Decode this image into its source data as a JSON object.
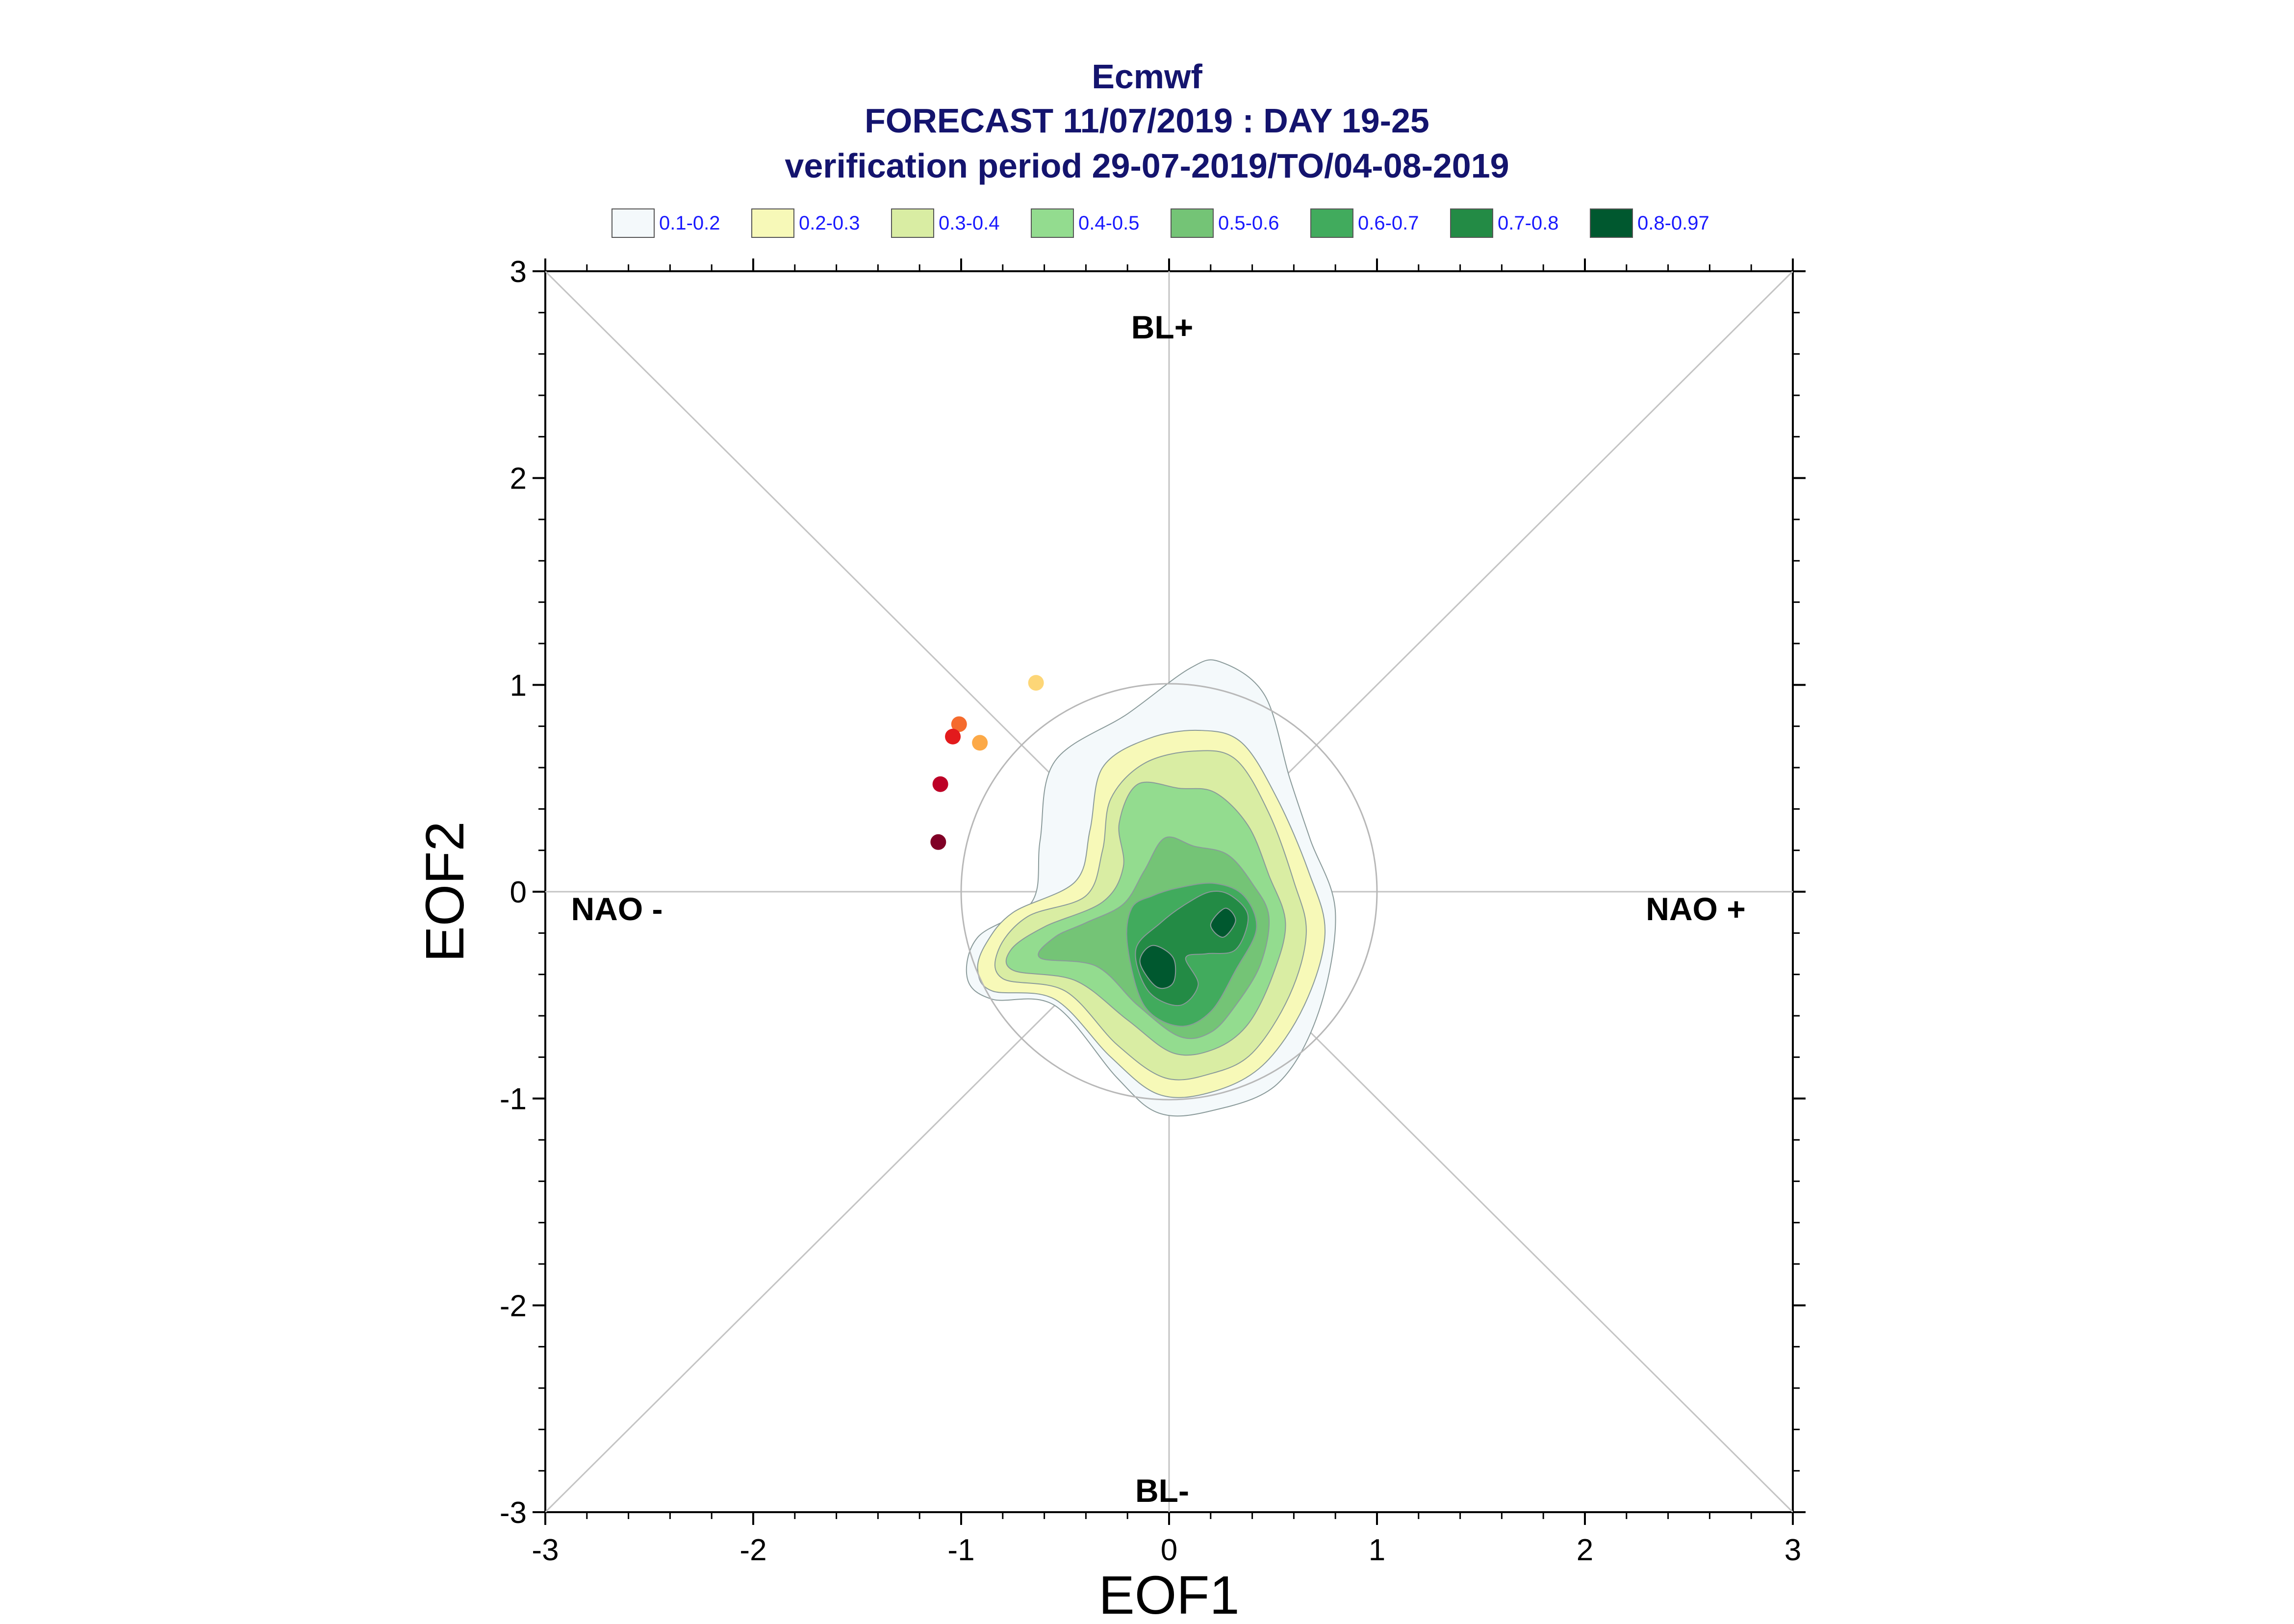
{
  "chart_data": {
    "type": "scatter",
    "title": "Ecmwf",
    "subtitle_lines": [
      "FORECAST 11/07/2019 : DAY 19-25",
      "verification period 29-07-2019/TO/04-08-2019"
    ],
    "xlabel": "EOF1",
    "ylabel": "EOF2",
    "xlim": [
      -3,
      3
    ],
    "ylim": [
      -3,
      3
    ],
    "xticks": [
      "-3",
      "-2",
      "-1",
      "0",
      "1",
      "2",
      "3"
    ],
    "yticks": [
      "-3",
      "-2",
      "-1",
      "0",
      "1",
      "2",
      "3"
    ],
    "regions": {
      "top": "BL+",
      "bottom": "BL-",
      "left": "NAO -",
      "right": "NAO +"
    },
    "legend": {
      "placement": "top",
      "entries": [
        {
          "label": "0.1-0.2",
          "color": "#f4f9fb"
        },
        {
          "label": "0.2-0.3",
          "color": "#f7f9b8"
        },
        {
          "label": "0.3-0.4",
          "color": "#d9eda3"
        },
        {
          "label": "0.4-0.5",
          "color": "#93dc8f"
        },
        {
          "label": "0.5-0.6",
          "color": "#74c476"
        },
        {
          "label": "0.6-0.7",
          "color": "#41ab5d"
        },
        {
          "label": "0.7-0.8",
          "color": "#238b45"
        },
        {
          "label": "0.8-0.97",
          "color": "#00582f"
        }
      ]
    },
    "unit_circle": {
      "radius": 1
    },
    "density_contours": [
      {
        "level": "0.1-0.2",
        "points": [
          [
            -0.85,
            -0.52
          ],
          [
            -0.55,
            -0.55
          ],
          [
            -0.25,
            -0.9
          ],
          [
            -0.05,
            -1.07
          ],
          [
            0.2,
            -1.06
          ],
          [
            0.52,
            -0.93
          ],
          [
            0.72,
            -0.58
          ],
          [
            0.8,
            -0.1
          ],
          [
            0.68,
            0.25
          ],
          [
            0.58,
            0.55
          ],
          [
            0.46,
            0.95
          ],
          [
            0.25,
            1.11
          ],
          [
            0.1,
            1.08
          ],
          [
            -0.2,
            0.86
          ],
          [
            -0.55,
            0.63
          ],
          [
            -0.62,
            0.25
          ],
          [
            -0.66,
            -0.05
          ],
          [
            -0.92,
            -0.22
          ],
          [
            -0.97,
            -0.42
          ]
        ]
      },
      {
        "level": "0.2-0.3",
        "points": [
          [
            -0.85,
            -0.48
          ],
          [
            -0.55,
            -0.52
          ],
          [
            -0.28,
            -0.8
          ],
          [
            -0.05,
            -0.98
          ],
          [
            0.2,
            -0.97
          ],
          [
            0.45,
            -0.84
          ],
          [
            0.65,
            -0.55
          ],
          [
            0.75,
            -0.2
          ],
          [
            0.67,
            0.1
          ],
          [
            0.52,
            0.45
          ],
          [
            0.35,
            0.72
          ],
          [
            0.15,
            0.78
          ],
          [
            -0.1,
            0.74
          ],
          [
            -0.32,
            0.6
          ],
          [
            -0.38,
            0.3
          ],
          [
            -0.45,
            0.05
          ],
          [
            -0.75,
            -0.1
          ],
          [
            -0.88,
            -0.25
          ],
          [
            -0.92,
            -0.38
          ]
        ]
      },
      {
        "level": "0.3-0.4",
        "points": [
          [
            -0.8,
            -0.42
          ],
          [
            -0.5,
            -0.48
          ],
          [
            -0.25,
            -0.74
          ],
          [
            -0.02,
            -0.9
          ],
          [
            0.2,
            -0.88
          ],
          [
            0.4,
            -0.78
          ],
          [
            0.58,
            -0.5
          ],
          [
            0.66,
            -0.2
          ],
          [
            0.6,
            0.05
          ],
          [
            0.48,
            0.38
          ],
          [
            0.32,
            0.64
          ],
          [
            0.12,
            0.68
          ],
          [
            -0.12,
            0.62
          ],
          [
            -0.28,
            0.45
          ],
          [
            -0.32,
            0.2
          ],
          [
            -0.4,
            -0.02
          ],
          [
            -0.68,
            -0.12
          ],
          [
            -0.82,
            -0.28
          ]
        ]
      },
      {
        "level": "0.4-0.5",
        "points": [
          [
            -0.75,
            -0.38
          ],
          [
            -0.45,
            -0.43
          ],
          [
            -0.2,
            -0.62
          ],
          [
            0.02,
            -0.78
          ],
          [
            0.22,
            -0.76
          ],
          [
            0.38,
            -0.64
          ],
          [
            0.5,
            -0.4
          ],
          [
            0.56,
            -0.15
          ],
          [
            0.48,
            0.08
          ],
          [
            0.38,
            0.32
          ],
          [
            0.22,
            0.48
          ],
          [
            0.05,
            0.5
          ],
          [
            -0.15,
            0.52
          ],
          [
            -0.24,
            0.33
          ],
          [
            -0.22,
            0.12
          ],
          [
            -0.32,
            -0.05
          ],
          [
            -0.6,
            -0.17
          ],
          [
            -0.76,
            -0.28
          ]
        ]
      },
      {
        "level": "0.5-0.6",
        "points": [
          [
            -0.62,
            -0.32
          ],
          [
            -0.35,
            -0.36
          ],
          [
            -0.15,
            -0.55
          ],
          [
            0.05,
            -0.7
          ],
          [
            0.2,
            -0.68
          ],
          [
            0.32,
            -0.55
          ],
          [
            0.44,
            -0.35
          ],
          [
            0.48,
            -0.12
          ],
          [
            0.4,
            0.04
          ],
          [
            0.28,
            0.18
          ],
          [
            0.12,
            0.22
          ],
          [
            -0.02,
            0.26
          ],
          [
            -0.12,
            0.1
          ],
          [
            -0.22,
            -0.06
          ],
          [
            -0.4,
            -0.15
          ],
          [
            -0.55,
            -0.22
          ]
        ]
      },
      {
        "level": "0.6-0.7",
        "points": [
          [
            -0.2,
            -0.26
          ],
          [
            -0.12,
            -0.55
          ],
          [
            0.05,
            -0.65
          ],
          [
            0.2,
            -0.58
          ],
          [
            0.32,
            -0.38
          ],
          [
            0.42,
            -0.18
          ],
          [
            0.36,
            -0.02
          ],
          [
            0.22,
            0.04
          ],
          [
            0.05,
            0.02
          ],
          [
            -0.08,
            -0.02
          ],
          [
            -0.18,
            -0.08
          ]
        ]
      },
      {
        "level": "0.7-0.8",
        "points": [
          [
            -0.16,
            -0.28
          ],
          [
            -0.1,
            -0.48
          ],
          [
            0.05,
            -0.55
          ],
          [
            0.14,
            -0.45
          ],
          [
            0.08,
            -0.32
          ],
          [
            0.18,
            -0.3
          ],
          [
            0.32,
            -0.28
          ],
          [
            0.38,
            -0.12
          ],
          [
            0.3,
            -0.02
          ],
          [
            0.2,
            0.0
          ],
          [
            0.08,
            -0.06
          ],
          [
            -0.04,
            -0.15
          ]
        ]
      },
      {
        "level": "0.8-0.97",
        "points": [
          [
            -0.14,
            -0.34
          ],
          [
            -0.06,
            -0.46
          ],
          [
            0.02,
            -0.44
          ],
          [
            0.02,
            -0.32
          ],
          [
            -0.08,
            -0.26
          ]
        ]
      },
      {
        "level": "0.8-0.97",
        "points": [
          [
            0.2,
            -0.16
          ],
          [
            0.26,
            -0.22
          ],
          [
            0.32,
            -0.14
          ],
          [
            0.27,
            -0.08
          ]
        ]
      }
    ],
    "points": [
      {
        "x": -0.64,
        "y": 1.01,
        "color": "#fdd677"
      },
      {
        "x": -0.91,
        "y": 0.72,
        "color": "#fca947"
      },
      {
        "x": -1.01,
        "y": 0.81,
        "color": "#f56b2d"
      },
      {
        "x": -1.04,
        "y": 0.75,
        "color": "#e31a1c"
      },
      {
        "x": -1.1,
        "y": 0.52,
        "color": "#bd0026"
      },
      {
        "x": -1.11,
        "y": 0.24,
        "color": "#800026"
      }
    ]
  }
}
